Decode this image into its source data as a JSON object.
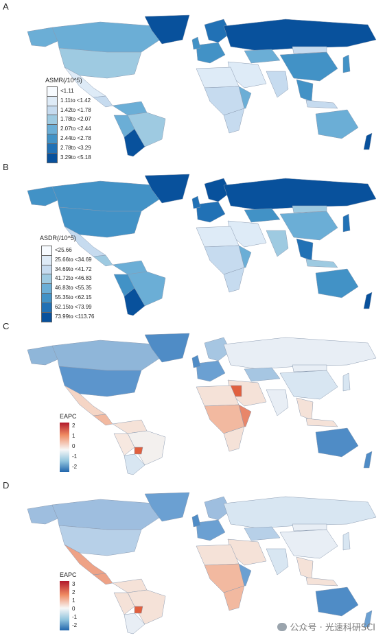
{
  "panels": [
    {
      "label": "A",
      "legend_title": "ASMR(/10^5)",
      "legend_type": "discrete",
      "classes": [
        "<1.11",
        "1.11to <1.42",
        "1.42to <1.78",
        "1.78to <2.07",
        "2.07to <2.44",
        "2.44to <2.78",
        "2.78to <3.29",
        "3.29to <5.18"
      ],
      "colors": [
        "#f7fbff",
        "#deebf7",
        "#c6dbef",
        "#9ecae1",
        "#6baed6",
        "#4292c6",
        "#2171b5",
        "#08519c"
      ]
    },
    {
      "label": "B",
      "legend_title": "ASDR(/10^5)",
      "legend_type": "discrete",
      "classes": [
        "<25.66",
        "25.66to <34.69",
        "34.69to <41.72",
        "41.72to <46.83",
        "46.83to <55.35",
        "55.35to <62.15",
        "62.15to <73.99",
        "73.99to <113.76"
      ],
      "colors": [
        "#f7fbff",
        "#deebf7",
        "#c6dbef",
        "#9ecae1",
        "#6baed6",
        "#4292c6",
        "#2171b5",
        "#08519c"
      ]
    },
    {
      "label": "C",
      "legend_title": "EAPC",
      "legend_type": "continuous",
      "ticks": [
        "2",
        "1",
        "0",
        "-1",
        "-2"
      ]
    },
    {
      "label": "D",
      "legend_title": "EAPC",
      "legend_type": "continuous",
      "ticks": [
        "3",
        "2",
        "1",
        "0",
        "-1",
        "-2"
      ]
    }
  ],
  "watermark": "公众号 · 光速科研SCI"
}
